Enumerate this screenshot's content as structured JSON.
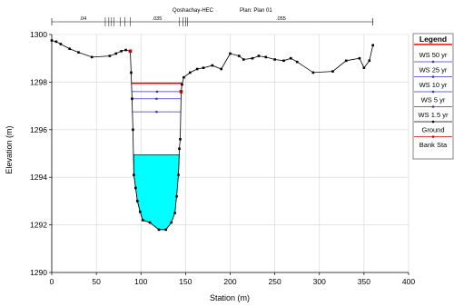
{
  "chart_data": {
    "type": "line",
    "title": "Qoshachay-HEC",
    "subtitle": "Plan: Plan 01",
    "xlabel": "Station (m)",
    "ylabel": "Elevation (m)",
    "xlim": [
      0,
      400
    ],
    "ylim": [
      1290,
      1300
    ],
    "x_ticks": [
      0,
      50,
      100,
      150,
      200,
      250,
      300,
      350,
      400
    ],
    "y_ticks": [
      1290,
      1292,
      1294,
      1296,
      1298,
      1300
    ],
    "legend_title": "Legend",
    "legend_position": "right",
    "manning_labels": [
      ".04",
      ".035",
      ".055"
    ],
    "manning_label_stations": [
      35,
      118,
      257
    ],
    "breaks_left": [
      60,
      64,
      67,
      70,
      77,
      82,
      88
    ],
    "breaks_right": [
      143,
      147,
      150,
      152
    ],
    "colors": {
      "ws50": "#ff0000",
      "ws_other": "#3333cc",
      "ground": "#000000",
      "water_fill": "#00ffff",
      "bank": "#cc0000"
    },
    "series": [
      {
        "name": "Ground",
        "style": "line-with-points",
        "points": [
          [
            0,
            1299.75
          ],
          [
            5,
            1299.7
          ],
          [
            10,
            1299.6
          ],
          [
            20,
            1299.4
          ],
          [
            30,
            1299.25
          ],
          [
            45,
            1299.05
          ],
          [
            65,
            1299.1
          ],
          [
            72,
            1299.2
          ],
          [
            78,
            1299.3
          ],
          [
            83,
            1299.35
          ],
          [
            88,
            1299.3
          ],
          [
            89,
            1298.4
          ],
          [
            90,
            1297.3
          ],
          [
            91,
            1296.0
          ],
          [
            92,
            1294.1
          ],
          [
            94,
            1293.55
          ],
          [
            96,
            1293.0
          ],
          [
            99,
            1292.55
          ],
          [
            102,
            1292.2
          ],
          [
            110,
            1292.1
          ],
          [
            120,
            1291.8
          ],
          [
            128,
            1291.8
          ],
          [
            134,
            1292.1
          ],
          [
            138,
            1292.5
          ],
          [
            140,
            1293.2
          ],
          [
            142,
            1294.1
          ],
          [
            143,
            1295.2
          ],
          [
            144,
            1295.6
          ],
          [
            145,
            1297.6
          ],
          [
            146,
            1297.9
          ],
          [
            148,
            1298.2
          ],
          [
            155,
            1298.4
          ],
          [
            163,
            1298.55
          ],
          [
            170,
            1298.6
          ],
          [
            180,
            1298.7
          ],
          [
            190,
            1298.55
          ],
          [
            200,
            1299.2
          ],
          [
            210,
            1299.1
          ],
          [
            215,
            1298.95
          ],
          [
            225,
            1299.0
          ],
          [
            232,
            1299.1
          ],
          [
            240,
            1299.05
          ],
          [
            250,
            1298.95
          ],
          [
            260,
            1298.9
          ],
          [
            268,
            1299.0
          ],
          [
            275,
            1298.85
          ],
          [
            293,
            1298.4
          ],
          [
            315,
            1298.45
          ],
          [
            330,
            1298.9
          ],
          [
            345,
            1299.0
          ],
          [
            350,
            1298.6
          ],
          [
            356,
            1298.9
          ],
          [
            360,
            1299.55
          ]
        ]
      },
      {
        "name": "Bank Sta",
        "style": "points",
        "points": [
          [
            88,
            1299.3
          ],
          [
            145,
            1297.6
          ]
        ]
      },
      {
        "name": "WS 50 yr",
        "style": "line",
        "points": [
          [
            89,
            1297.95
          ],
          [
            146,
            1297.95
          ]
        ]
      },
      {
        "name": "WS 25 yr",
        "style": "line-with-points",
        "points": [
          [
            90,
            1297.6
          ],
          [
            146,
            1297.6
          ]
        ]
      },
      {
        "name": "WS 10 yr",
        "style": "line-with-points",
        "points": [
          [
            90,
            1297.3
          ],
          [
            145,
            1297.3
          ]
        ]
      },
      {
        "name": "WS 5 yr",
        "style": "line-with-points",
        "points": [
          [
            90,
            1296.75
          ],
          [
            145,
            1296.75
          ]
        ]
      },
      {
        "name": "WS 1.5 yr",
        "style": "filled-water",
        "points": [
          [
            92,
            1294.95
          ],
          [
            143,
            1294.95
          ]
        ]
      }
    ]
  }
}
